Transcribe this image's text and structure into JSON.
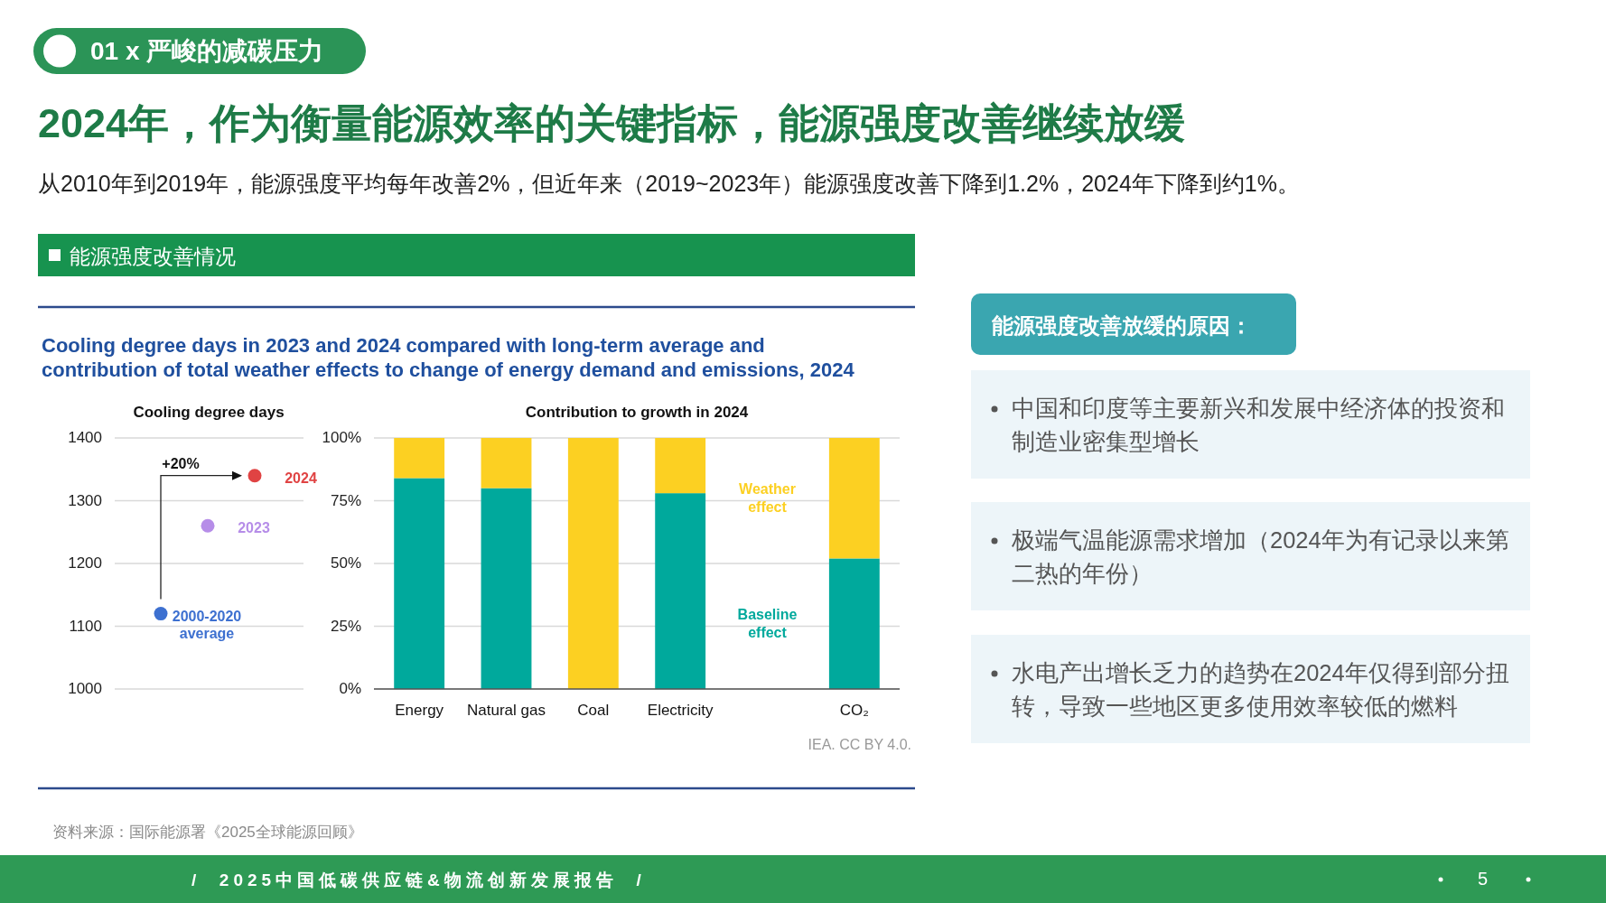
{
  "chart_data": [
    {
      "type": "other",
      "title": "2024年，作为衡量能源效率的关键指标，能源强度改善继续放缓",
      "subtitle": "从2010年到2019年，能源强度平均每年改善2%，但近年来（2019~2023年）能源强度改善下降到1.2%，2024年下降到约1%。",
      "annotations": [
        "01 x 严峻的减碳压力",
        "资料来源：国际能源署《2025全球能源回顾》",
        "/  2025中国低碳供应链&物流创新发展报告  /",
        "5"
      ]
    },
    {
      "type": "other",
      "title": "能源强度改善情况",
      "subtitle": "Cooling degree days in 2023 and 2024 compared with long-term average and contribution of total weather effects to change of energy demand and emissions, 2024",
      "annotations": [
        "IEA. CC BY 4.0."
      ]
    },
    {
      "type": "scatter",
      "title": "Cooling degree days",
      "categories": [
        null,
        null,
        null
      ],
      "marker": "circle",
      "legend": false,
      "grid": "y",
      "ylim": [
        1000,
        1400
      ],
      "yticks": [
        1000,
        1100,
        1200,
        1300,
        1400
      ],
      "annotations": [
        "+20%"
      ],
      "series": [
        {
          "name": "2000-2020 average",
          "color": "#3d70d0",
          "values": [
            1120,
            null,
            null
          ]
        },
        {
          "name": "2023",
          "color": "#b68de8",
          "values": [
            null,
            1260,
            null
          ]
        },
        {
          "name": "2024",
          "color": "#e04343",
          "values": [
            null,
            null,
            1340
          ]
        }
      ]
    },
    {
      "type": "bar",
      "stacked": true,
      "title": "Contribution to growth in 2024",
      "categories": [
        "Energy",
        "Natural gas",
        "Coal",
        "Electricity",
        null,
        "CO₂"
      ],
      "legend": false,
      "grid": "y",
      "ylim": [
        0,
        100
      ],
      "yticks": [
        {
          "value": 0,
          "label": "0%"
        },
        {
          "value": 25,
          "label": "25%"
        },
        {
          "value": 50,
          "label": "50%"
        },
        {
          "value": 75,
          "label": "75%"
        },
        {
          "value": 100,
          "label": "100%"
        }
      ],
      "series": [
        {
          "name": "Baseline effect",
          "color": "#00a99c",
          "values": [
            84,
            80,
            0,
            78,
            null,
            52
          ]
        },
        {
          "name": "Weather effect",
          "color": "#fcd022",
          "values": [
            16,
            20,
            100,
            22,
            null,
            48
          ]
        }
      ]
    },
    {
      "type": "other",
      "title": "能源强度改善放缓的原因：",
      "annotations": [
        "中国和印度等主要新兴和发展中经济体的投资和制造业密集型增长",
        "极端气温能源需求增加（2024年为有记录以来第二热的年份）",
        "水电产出增长乏力的趋势在2024年仅得到部分扭转，导致一些地区更多使用效率较低的燃料"
      ]
    }
  ]
}
